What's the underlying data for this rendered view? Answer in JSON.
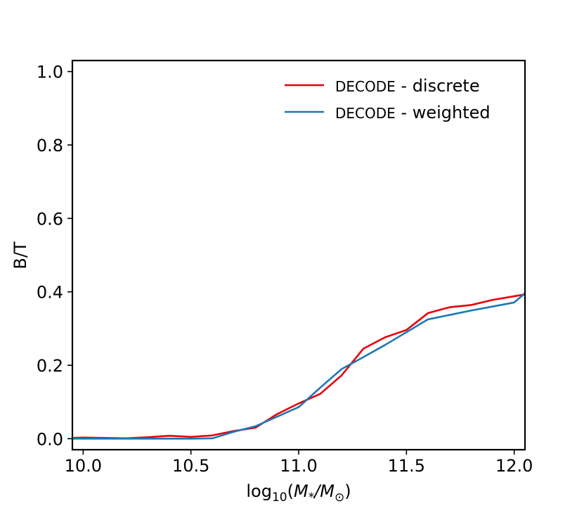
{
  "chart_data": {
    "type": "line",
    "title": "",
    "xlabel_parts": {
      "base": "log",
      "base_sub": "10",
      "open": "(",
      "num": "M",
      "num_sub": "*",
      "slash": "/",
      "den": "M",
      "den_sub": "⊙",
      "close": ")"
    },
    "ylabel": "B/T",
    "xlim": [
      9.95,
      12.05
    ],
    "ylim": [
      -0.03,
      1.03
    ],
    "xticks": [
      10.0,
      10.5,
      11.0,
      11.5,
      12.0
    ],
    "xtick_labels": [
      "10.0",
      "10.5",
      "11.0",
      "11.5",
      "12.0"
    ],
    "yticks": [
      0.0,
      0.2,
      0.4,
      0.6,
      0.8,
      1.0
    ],
    "ytick_labels": [
      "0.0",
      "0.2",
      "0.4",
      "0.6",
      "0.8",
      "1.0"
    ],
    "grid": false,
    "legend_position": "upper-right",
    "series": [
      {
        "name": "DECODE - discrete",
        "name_sc": "DECODE",
        "name_rest": " - discrete",
        "color": "#e8000b",
        "x": [
          9.95,
          10.0,
          10.1,
          10.2,
          10.3,
          10.4,
          10.5,
          10.6,
          10.7,
          10.8,
          10.9,
          11.0,
          11.1,
          11.2,
          11.3,
          11.4,
          11.5,
          11.6,
          11.7,
          11.8,
          11.9,
          12.0,
          12.05
        ],
        "values": [
          0.002,
          0.003,
          0.002,
          0.001,
          0.004,
          0.008,
          0.005,
          0.009,
          0.021,
          0.03,
          0.067,
          0.096,
          0.122,
          0.173,
          0.245,
          0.276,
          0.296,
          0.342,
          0.358,
          0.364,
          0.378,
          0.388,
          0.393
        ]
      },
      {
        "name": "DECODE - weighted",
        "name_sc": "DECODE",
        "name_rest": " - weighted",
        "color": "#1f77b4",
        "x": [
          9.95,
          10.0,
          10.1,
          10.2,
          10.3,
          10.4,
          10.5,
          10.6,
          10.7,
          10.8,
          10.9,
          11.0,
          11.1,
          11.2,
          11.3,
          11.4,
          11.5,
          11.6,
          11.7,
          11.8,
          11.9,
          12.0,
          12.05
        ],
        "values": [
          0.0,
          0.0,
          0.0,
          0.0,
          0.0,
          0.0,
          0.0,
          0.001,
          0.019,
          0.034,
          0.06,
          0.086,
          0.139,
          0.19,
          0.222,
          0.255,
          0.29,
          0.325,
          0.337,
          0.349,
          0.36,
          0.371,
          0.396
        ]
      }
    ]
  }
}
